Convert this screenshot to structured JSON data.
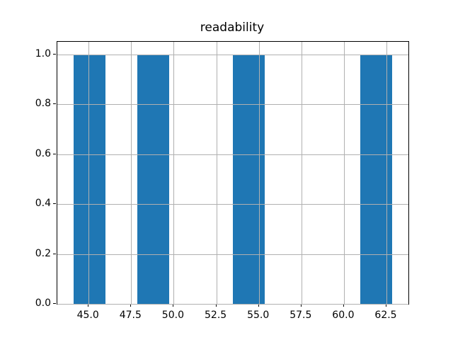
{
  "chart_data": {
    "type": "bar",
    "subtype": "histogram",
    "title": "readability",
    "xlabel": "",
    "ylabel": "",
    "bin_edges": [
      44.1,
      45.975,
      47.85,
      49.725,
      51.6,
      53.475,
      55.35,
      57.225,
      59.1,
      60.975,
      62.85
    ],
    "counts": [
      1,
      0,
      1,
      0,
      0,
      1,
      0,
      0,
      0,
      1
    ],
    "xticks": [
      45.0,
      47.5,
      50.0,
      52.5,
      55.0,
      57.5,
      60.0,
      62.5
    ],
    "xtick_labels": [
      "45.0",
      "47.5",
      "50.0",
      "52.5",
      "55.0",
      "57.5",
      "60.0",
      "62.5"
    ],
    "yticks": [
      0.0,
      0.2,
      0.4,
      0.6,
      0.8,
      1.0
    ],
    "ytick_labels": [
      "0.0",
      "0.2",
      "0.4",
      "0.6",
      "0.8",
      "1.0"
    ],
    "xlim": [
      43.1625,
      63.7875
    ],
    "ylim": [
      0,
      1.05
    ],
    "grid": true,
    "grid_over_bars": true,
    "legend": "none",
    "bar_color": "#1f77b4",
    "grid_color": "#b0b0b0",
    "spine_color": "#000000",
    "background_color": "#ffffff"
  }
}
